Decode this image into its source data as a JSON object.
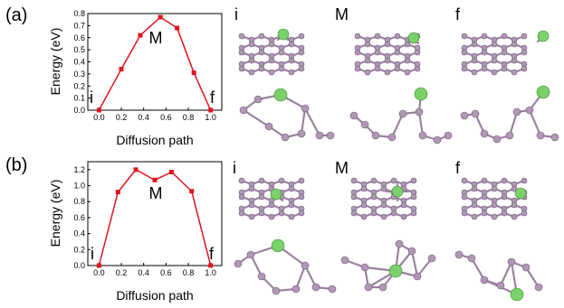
{
  "colors": {
    "line": "#e0141e",
    "atom_p": "#b196b6",
    "atom_p_stroke": "#6e5a74",
    "bond": "#9a82a0",
    "atom_dopant": "#7ad16a",
    "atom_dopant_stroke": "#3d8a33"
  },
  "panels": [
    {
      "label": "(a)"
    },
    {
      "label": "(b)"
    }
  ],
  "chart_data": [
    {
      "type": "line",
      "title": "",
      "xlabel": "Diffusion path",
      "ylabel": "Energy (eV)",
      "x": [
        0.0,
        0.2,
        0.37,
        0.55,
        0.7,
        0.85,
        1.0
      ],
      "series": [
        {
          "values": [
            0.0,
            0.34,
            0.62,
            0.77,
            0.68,
            0.31,
            0.0
          ]
        }
      ],
      "xlim": [
        -0.1,
        1.1
      ],
      "ylim": [
        0.0,
        0.8
      ],
      "xticks": [
        "0.0",
        "0.2",
        "0.4",
        "0.6",
        "0.8",
        "1.0"
      ],
      "yticks": [
        "0.0",
        "0.1",
        "0.2",
        "0.3",
        "0.4",
        "0.5",
        "0.6",
        "0.7",
        "0.8"
      ],
      "annotations": {
        "start": "i",
        "mid": "M",
        "end": "f"
      }
    },
    {
      "type": "line",
      "title": "",
      "xlabel": "Diffusion path",
      "ylabel": "Energy (eV)",
      "x": [
        0.0,
        0.17,
        0.33,
        0.5,
        0.65,
        0.83,
        1.0
      ],
      "series": [
        {
          "values": [
            0.0,
            0.92,
            1.2,
            1.07,
            1.17,
            0.93,
            0.0
          ]
        }
      ],
      "xlim": [
        -0.1,
        1.1
      ],
      "ylim": [
        0.0,
        1.3
      ],
      "xticks": [
        "0.0",
        "0.2",
        "0.4",
        "0.6",
        "0.8",
        "1.0"
      ],
      "yticks": [
        "0.0",
        "0.2",
        "0.4",
        "0.6",
        "0.8",
        "1.0",
        "1.2"
      ],
      "annotations": {
        "start": "i",
        "mid": "M",
        "end": "f"
      }
    }
  ],
  "structures": {
    "a": [
      {
        "label": "i"
      },
      {
        "label": "M"
      },
      {
        "label": "f"
      }
    ],
    "b": [
      {
        "label": "i"
      },
      {
        "label": "M"
      },
      {
        "label": "f"
      }
    ]
  }
}
